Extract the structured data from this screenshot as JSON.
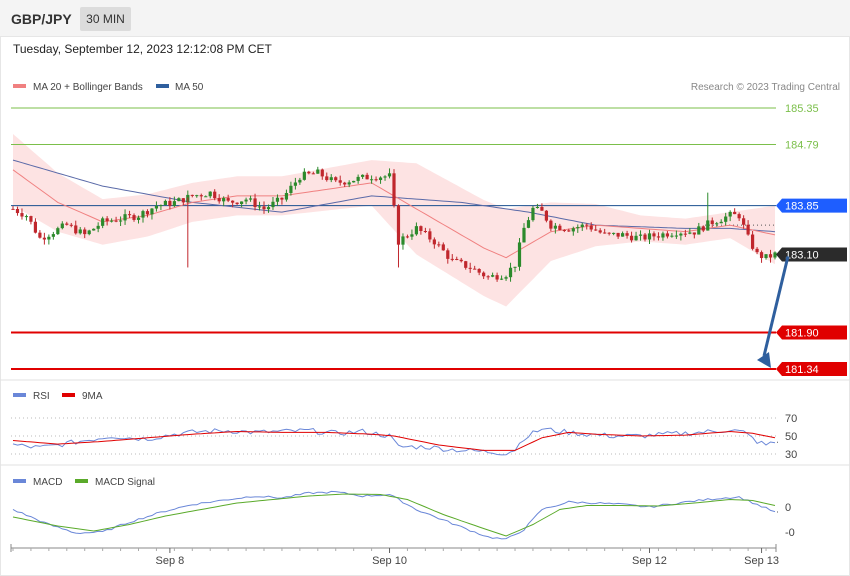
{
  "header": {
    "symbol": "GBP/JPY",
    "timeframe": "30 MIN",
    "datetime": "Tuesday, September 12, 2023 12:12:08 PM CET"
  },
  "credit": "Research © 2023 Trading Central",
  "colors": {
    "up": "#2c8a2c",
    "down": "#c0272d",
    "ma20": "#f08080",
    "ma50": "#5a6aa8",
    "band": "#fde3e3",
    "pivot_blue": "#1e5eff",
    "support_red": "#e00000",
    "resist_green": "#7bbf4a",
    "rsi": "#6a87d8",
    "rsi_ma": "#e00000",
    "macd": "#6a87d8",
    "macd_signal": "#5aaa2a",
    "arrow": "#2f5f9e"
  },
  "chart_data": [
    {
      "type": "candlestick",
      "title": "",
      "legend": [
        "MA 20 + Bollinger Bands",
        "MA 50"
      ],
      "legend_placement": "top-left",
      "ylim": [
        181.2,
        185.5
      ],
      "x_ticks": [
        {
          "label": "Sep 8",
          "x": 35
        },
        {
          "label": "Sep 10",
          "x": 84
        },
        {
          "label": "Sep 12",
          "x": 142
        },
        {
          "label": "Sep 13",
          "x": 167
        }
      ],
      "levels": [
        {
          "value": 185.35,
          "label": "185.35",
          "style": "resistance"
        },
        {
          "value": 184.79,
          "label": "184.79",
          "style": "resistance"
        },
        {
          "value": 183.85,
          "label": "183.85",
          "style": "pivot"
        },
        {
          "value": 183.1,
          "label": "183.10",
          "style": "last"
        },
        {
          "value": 181.9,
          "label": "181.90",
          "style": "support"
        },
        {
          "value": 181.34,
          "label": "181.34",
          "style": "support"
        }
      ],
      "forecast_arrow": {
        "from": [
          172,
          183.1
        ],
        "to": [
          187,
          181.34
        ]
      },
      "ohlc_keypoints": [
        [
          0,
          183.8
        ],
        [
          3,
          183.7
        ],
        [
          6,
          183.35
        ],
        [
          9,
          183.45
        ],
        [
          12,
          183.55
        ],
        [
          16,
          183.4
        ],
        [
          20,
          183.6
        ],
        [
          24,
          183.65
        ],
        [
          28,
          183.7
        ],
        [
          32,
          183.85
        ],
        [
          36,
          183.9
        ],
        [
          40,
          184.0
        ],
        [
          44,
          184.05
        ],
        [
          48,
          183.9
        ],
        [
          52,
          183.95
        ],
        [
          56,
          183.8
        ],
        [
          60,
          183.95
        ],
        [
          64,
          184.3
        ],
        [
          68,
          184.35
        ],
        [
          72,
          184.2
        ],
        [
          76,
          184.25
        ],
        [
          80,
          184.3
        ],
        [
          84,
          184.3
        ],
        [
          86,
          183.3
        ],
        [
          90,
          183.5
        ],
        [
          94,
          183.3
        ],
        [
          98,
          183.0
        ],
        [
          102,
          182.9
        ],
        [
          106,
          182.75
        ],
        [
          110,
          182.8
        ],
        [
          112,
          182.95
        ],
        [
          114,
          183.5
        ],
        [
          116,
          183.8
        ],
        [
          118,
          183.75
        ],
        [
          120,
          183.55
        ],
        [
          124,
          183.5
        ],
        [
          128,
          183.55
        ],
        [
          132,
          183.4
        ],
        [
          136,
          183.4
        ],
        [
          140,
          183.35
        ],
        [
          144,
          183.4
        ],
        [
          148,
          183.45
        ],
        [
          152,
          183.45
        ],
        [
          156,
          183.6
        ],
        [
          160,
          183.7
        ],
        [
          162,
          183.7
        ],
        [
          164,
          183.35
        ],
        [
          166,
          183.1
        ],
        [
          168,
          183.05
        ],
        [
          170,
          183.1
        ]
      ],
      "ma20_keypoints": [
        [
          0,
          184.4
        ],
        [
          10,
          183.9
        ],
        [
          20,
          183.6
        ],
        [
          30,
          183.7
        ],
        [
          40,
          183.9
        ],
        [
          50,
          184.0
        ],
        [
          60,
          184.0
        ],
        [
          70,
          184.1
        ],
        [
          80,
          184.2
        ],
        [
          85,
          184.0
        ],
        [
          95,
          183.6
        ],
        [
          105,
          183.2
        ],
        [
          110,
          183.05
        ],
        [
          115,
          183.25
        ],
        [
          120,
          183.45
        ],
        [
          130,
          183.55
        ],
        [
          140,
          183.5
        ],
        [
          150,
          183.45
        ],
        [
          160,
          183.55
        ],
        [
          170,
          183.4
        ]
      ],
      "ma50_keypoints": [
        [
          0,
          184.55
        ],
        [
          20,
          184.15
        ],
        [
          40,
          183.9
        ],
        [
          60,
          183.75
        ],
        [
          80,
          184.0
        ],
        [
          100,
          183.9
        ],
        [
          115,
          183.75
        ],
        [
          130,
          183.55
        ],
        [
          150,
          183.5
        ],
        [
          160,
          183.5
        ],
        [
          170,
          183.45
        ]
      ],
      "band_width_keypoints": [
        [
          0,
          0.55
        ],
        [
          20,
          0.35
        ],
        [
          40,
          0.3
        ],
        [
          60,
          0.3
        ],
        [
          80,
          0.35
        ],
        [
          90,
          0.7
        ],
        [
          110,
          0.75
        ],
        [
          120,
          0.45
        ],
        [
          140,
          0.2
        ],
        [
          160,
          0.2
        ],
        [
          170,
          0.45
        ]
      ]
    },
    {
      "type": "line",
      "title": "",
      "series": [
        {
          "name": "RSI"
        },
        {
          "name": "9MA"
        }
      ],
      "ylim": [
        25,
        75
      ],
      "y_ticks": [
        70,
        50,
        30
      ],
      "rsi_keypoints": [
        [
          0,
          40
        ],
        [
          6,
          37
        ],
        [
          10,
          40
        ],
        [
          16,
          45
        ],
        [
          22,
          50
        ],
        [
          26,
          48
        ],
        [
          30,
          47
        ],
        [
          36,
          52
        ],
        [
          42,
          55
        ],
        [
          48,
          56
        ],
        [
          54,
          54
        ],
        [
          60,
          55
        ],
        [
          66,
          56
        ],
        [
          72,
          53
        ],
        [
          78,
          55
        ],
        [
          84,
          50
        ],
        [
          86,
          38
        ],
        [
          92,
          38
        ],
        [
          98,
          35
        ],
        [
          104,
          33
        ],
        [
          110,
          31
        ],
        [
          112,
          35
        ],
        [
          114,
          48
        ],
        [
          118,
          58
        ],
        [
          122,
          55
        ],
        [
          128,
          52
        ],
        [
          134,
          50
        ],
        [
          140,
          50
        ],
        [
          146,
          52
        ],
        [
          150,
          53
        ],
        [
          156,
          55
        ],
        [
          160,
          57
        ],
        [
          163,
          54
        ],
        [
          166,
          44
        ],
        [
          168,
          40
        ],
        [
          170,
          43
        ]
      ],
      "rsi_ma_keypoints": [
        [
          0,
          45
        ],
        [
          10,
          41
        ],
        [
          20,
          44
        ],
        [
          30,
          48
        ],
        [
          40,
          52
        ],
        [
          50,
          55
        ],
        [
          60,
          54
        ],
        [
          70,
          54
        ],
        [
          80,
          52
        ],
        [
          85,
          50
        ],
        [
          95,
          40
        ],
        [
          105,
          34
        ],
        [
          112,
          34
        ],
        [
          118,
          48
        ],
        [
          124,
          54
        ],
        [
          130,
          52
        ],
        [
          140,
          50
        ],
        [
          150,
          51
        ],
        [
          160,
          55
        ],
        [
          165,
          53
        ],
        [
          170,
          48
        ]
      ],
      "last_rsi": 43
    },
    {
      "type": "line",
      "title": "",
      "series": [
        {
          "name": "MACD"
        },
        {
          "name": "MACD Signal"
        }
      ],
      "ylim": [
        -0.7,
        0.55
      ],
      "y_ticks": [
        0,
        -0.5
      ],
      "y_tick_labels": [
        "0",
        "-0"
      ],
      "macd_keypoints": [
        [
          0,
          -0.05
        ],
        [
          8,
          -0.35
        ],
        [
          14,
          -0.52
        ],
        [
          20,
          -0.5
        ],
        [
          26,
          -0.3
        ],
        [
          34,
          -0.08
        ],
        [
          40,
          0.05
        ],
        [
          48,
          0.15
        ],
        [
          54,
          0.22
        ],
        [
          60,
          0.18
        ],
        [
          66,
          0.28
        ],
        [
          72,
          0.3
        ],
        [
          78,
          0.22
        ],
        [
          84,
          0.25
        ],
        [
          90,
          -0.05
        ],
        [
          100,
          -0.4
        ],
        [
          106,
          -0.6
        ],
        [
          110,
          -0.65
        ],
        [
          114,
          -0.45
        ],
        [
          118,
          -0.05
        ],
        [
          124,
          0.1
        ],
        [
          130,
          0.08
        ],
        [
          136,
          0.05
        ],
        [
          142,
          0.0
        ],
        [
          150,
          0.1
        ],
        [
          158,
          0.18
        ],
        [
          162,
          0.2
        ],
        [
          166,
          0.05
        ],
        [
          170,
          -0.1
        ]
      ],
      "signal_keypoints": [
        [
          0,
          -0.2
        ],
        [
          10,
          -0.38
        ],
        [
          18,
          -0.48
        ],
        [
          26,
          -0.35
        ],
        [
          34,
          -0.18
        ],
        [
          42,
          -0.05
        ],
        [
          50,
          0.08
        ],
        [
          58,
          0.15
        ],
        [
          66,
          0.22
        ],
        [
          74,
          0.26
        ],
        [
          82,
          0.25
        ],
        [
          88,
          0.15
        ],
        [
          96,
          -0.15
        ],
        [
          104,
          -0.4
        ],
        [
          110,
          -0.58
        ],
        [
          116,
          -0.35
        ],
        [
          122,
          -0.05
        ],
        [
          128,
          0.03
        ],
        [
          136,
          0.03
        ],
        [
          144,
          0.02
        ],
        [
          152,
          0.08
        ],
        [
          160,
          0.15
        ],
        [
          165,
          0.13
        ],
        [
          170,
          0.03
        ]
      ],
      "last_macd": -0.1
    }
  ]
}
